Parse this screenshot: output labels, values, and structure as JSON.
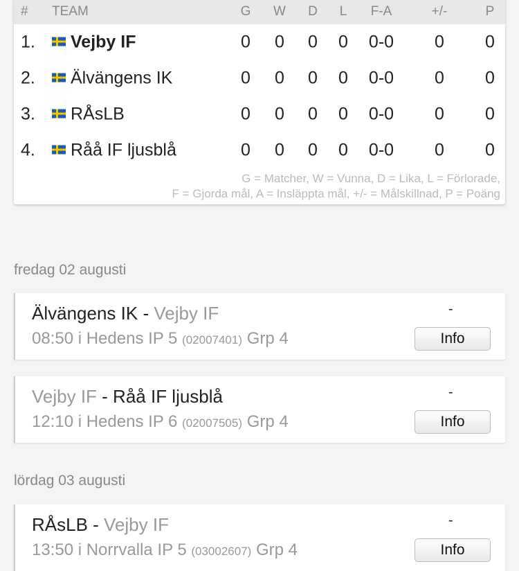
{
  "standings": {
    "headers": [
      "#",
      "TEAM",
      "G",
      "W",
      "D",
      "L",
      "F-A",
      "+/-",
      "P"
    ],
    "rows": [
      {
        "pos": "1.",
        "team": "Vejby IF",
        "g": "0",
        "w": "0",
        "d": "0",
        "l": "0",
        "fa": "0-0",
        "diff": "0",
        "p": "0",
        "bold": true
      },
      {
        "pos": "2.",
        "team": "Älvängens IK",
        "g": "0",
        "w": "0",
        "d": "0",
        "l": "0",
        "fa": "0-0",
        "diff": "0",
        "p": "0"
      },
      {
        "pos": "3.",
        "team": "RÅsLB",
        "g": "0",
        "w": "0",
        "d": "0",
        "l": "0",
        "fa": "0-0",
        "diff": "0",
        "p": "0"
      },
      {
        "pos": "4.",
        "team": "Råå IF ljusblå",
        "g": "0",
        "w": "0",
        "d": "0",
        "l": "0",
        "fa": "0-0",
        "diff": "0",
        "p": "0"
      }
    ],
    "legend_line1": "G = Matcher, W = Vunna, D = Lika, L = Förlorade,",
    "legend_line2": "F = Gjorda mål, A = Insläppta mål, +/- = Målskillnad, P = Poäng",
    "flag_icon": "sweden-flag-icon"
  },
  "dates": [
    "fredag 02 augusti",
    "lördag 03 augusti"
  ],
  "matches": [
    {
      "home": "Älvängens IK",
      "away": "Vejby IF",
      "sep": " - ",
      "time_venue": "08:50 i Hedens IP 5",
      "code": "(02007401)",
      "group": "Grp 4",
      "result": "-",
      "button": "Info",
      "home_dim": false
    },
    {
      "home": "Vejby IF",
      "away": "Råå IF ljusblå",
      "sep": " - ",
      "time_venue": "12:10 i Hedens IP 6",
      "code": "(02007505)",
      "group": "Grp 4",
      "result": "-",
      "button": "Info",
      "home_dim": true
    },
    {
      "home": "RÅsLB",
      "away": "Vejby IF",
      "sep": " - ",
      "time_venue": "13:50 i Norrvalla IP 5",
      "code": "(03002607)",
      "group": "Grp 4",
      "result": "-",
      "button": "Info",
      "home_dim": false
    }
  ]
}
